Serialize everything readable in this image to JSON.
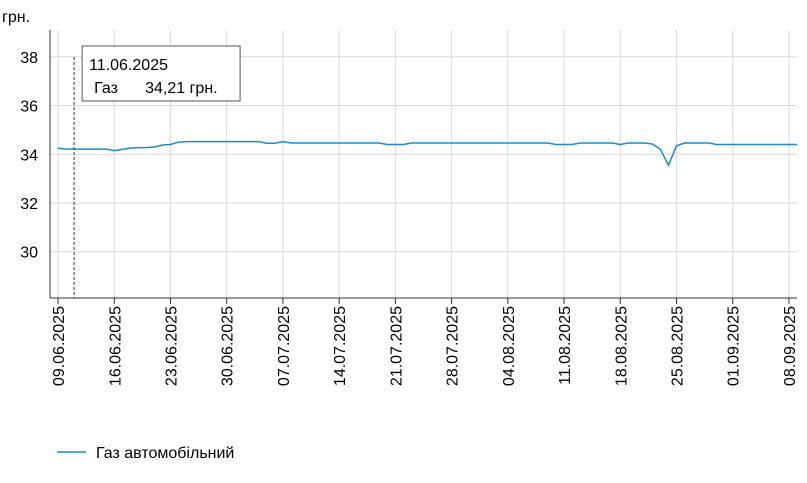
{
  "chart_data": {
    "type": "line",
    "y_unit": "грн.",
    "x": [
      "09.06.2025",
      "10.06.2025",
      "11.06.2025",
      "12.06.2025",
      "13.06.2025",
      "14.06.2025",
      "15.06.2025",
      "16.06.2025",
      "17.06.2025",
      "18.06.2025",
      "19.06.2025",
      "20.06.2025",
      "21.06.2025",
      "22.06.2025",
      "23.06.2025",
      "24.06.2025",
      "25.06.2025",
      "26.06.2025",
      "27.06.2025",
      "28.06.2025",
      "29.06.2025",
      "30.06.2025",
      "01.07.2025",
      "02.07.2025",
      "03.07.2025",
      "04.07.2025",
      "05.07.2025",
      "06.07.2025",
      "07.07.2025",
      "08.07.2025",
      "09.07.2025",
      "10.07.2025",
      "11.07.2025",
      "12.07.2025",
      "13.07.2025",
      "14.07.2025",
      "15.07.2025",
      "16.07.2025",
      "17.07.2025",
      "18.07.2025",
      "19.07.2025",
      "20.07.2025",
      "21.07.2025",
      "22.07.2025",
      "23.07.2025",
      "24.07.2025",
      "25.07.2025",
      "26.07.2025",
      "27.07.2025",
      "28.07.2025",
      "29.07.2025",
      "30.07.2025",
      "31.07.2025",
      "01.08.2025",
      "02.08.2025",
      "03.08.2025",
      "04.08.2025",
      "05.08.2025",
      "06.08.2025",
      "07.08.2025",
      "08.08.2025",
      "09.08.2025",
      "10.08.2025",
      "11.08.2025",
      "12.08.2025",
      "13.08.2025",
      "14.08.2025",
      "15.08.2025",
      "16.08.2025",
      "17.08.2025",
      "18.08.2025",
      "19.08.2025",
      "20.08.2025",
      "21.08.2025",
      "22.08.2025",
      "23.08.2025",
      "24.08.2025",
      "25.08.2025",
      "26.08.2025",
      "27.08.2025",
      "28.08.2025",
      "29.08.2025",
      "30.08.2025",
      "31.08.2025",
      "01.09.2025",
      "02.09.2025",
      "03.09.2025",
      "04.09.2025",
      "05.09.2025",
      "06.09.2025",
      "07.09.2025",
      "08.09.2025",
      "09.09.2025"
    ],
    "series": [
      {
        "name": "Газ автомобільний",
        "color": "#1f8ac6",
        "values": [
          34.25,
          34.21,
          34.21,
          34.21,
          34.21,
          34.21,
          34.21,
          34.15,
          34.2,
          34.25,
          34.27,
          34.27,
          34.3,
          34.38,
          34.4,
          34.5,
          34.52,
          34.52,
          34.52,
          34.52,
          34.52,
          34.52,
          34.52,
          34.52,
          34.52,
          34.52,
          34.45,
          34.45,
          34.52,
          34.46,
          34.46,
          34.46,
          34.46,
          34.46,
          34.46,
          34.46,
          34.46,
          34.46,
          34.46,
          34.46,
          34.46,
          34.4,
          34.4,
          34.4,
          34.46,
          34.46,
          34.46,
          34.46,
          34.46,
          34.46,
          34.46,
          34.46,
          34.46,
          34.46,
          34.46,
          34.46,
          34.46,
          34.46,
          34.46,
          34.46,
          34.46,
          34.46,
          34.4,
          34.4,
          34.4,
          34.46,
          34.46,
          34.46,
          34.46,
          34.46,
          34.4,
          34.46,
          34.46,
          34.46,
          34.42,
          34.2,
          33.55,
          34.35,
          34.46,
          34.46,
          34.46,
          34.46,
          34.4,
          34.4,
          34.4,
          34.4,
          34.4,
          34.4,
          34.4,
          34.4,
          34.4,
          34.4,
          34.4
        ]
      }
    ],
    "xlim": [
      "08.06.2025",
      "09.09.2025"
    ],
    "xticks": [
      "09.06.2025",
      "16.06.2025",
      "23.06.2025",
      "30.06.2025",
      "07.07.2025",
      "14.07.2025",
      "21.07.2025",
      "28.07.2025",
      "04.08.2025",
      "11.08.2025",
      "18.08.2025",
      "25.08.2025",
      "01.09.2025",
      "08.09.2025"
    ],
    "ylim": [
      28.1,
      39.1
    ],
    "yticks": [
      30,
      32,
      34,
      36,
      38
    ],
    "grid": true,
    "tooltip": {
      "x": "11.06.2025",
      "title": "11.06.2025",
      "series_label": "Газ",
      "value_label": "34,21 грн."
    }
  }
}
